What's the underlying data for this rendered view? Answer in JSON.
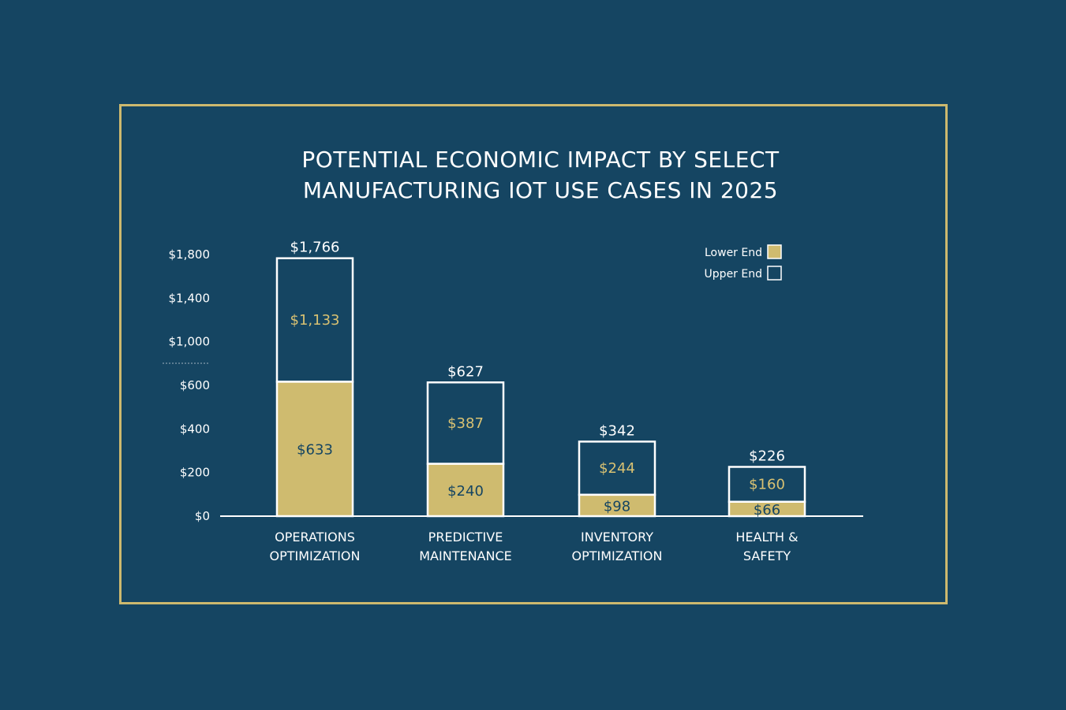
{
  "colors": {
    "background": "#154562",
    "frame": "#cdb96e",
    "lower_fill": "#cfbb6f",
    "upper_fill": "#154562",
    "bar_outline": "#ffffff",
    "upper_label": "#d8c172",
    "text": "#ffffff"
  },
  "chart_data": {
    "type": "bar",
    "stacked": true,
    "title_lines": [
      "POTENTIAL ECONOMIC IMPACT BY SELECT",
      "MANUFACTURING IOT USE CASES IN 2025"
    ],
    "categories": [
      [
        "OPERATIONS",
        "OPTIMIZATION"
      ],
      [
        "PREDICTIVE",
        "MAINTENANCE"
      ],
      [
        "INVENTORY",
        "OPTIMIZATION"
      ],
      [
        "HEALTH &",
        "SAFETY"
      ]
    ],
    "series": [
      {
        "name": "Lower End",
        "values": [
          633,
          240,
          98,
          66
        ],
        "labels": [
          "$633",
          "$240",
          "$98",
          "$66"
        ]
      },
      {
        "name": "Upper End",
        "values": [
          1133,
          387,
          244,
          160
        ],
        "labels": [
          "$1,133",
          "$387",
          "$244",
          "$160"
        ]
      }
    ],
    "totals": [
      "$1,766",
      "$627",
      "$342",
      "$226"
    ],
    "y_ticks": [
      "$0",
      "$200",
      "$400",
      "$600",
      "$1,000",
      "$1,400",
      "$1,800"
    ],
    "axis_break": true,
    "legend": {
      "position": "top-right",
      "entries": [
        "Lower End",
        "Upper End"
      ]
    },
    "grid": false
  }
}
